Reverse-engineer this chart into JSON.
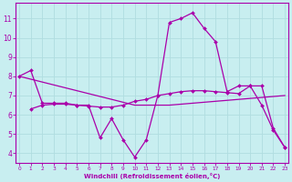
{
  "xlabel": "Windchill (Refroidissement éolien,°C)",
  "bg_color": "#c8eef0",
  "line_color": "#aa00aa",
  "grid_color": "#b0dde0",
  "x_ticks": [
    0,
    1,
    2,
    3,
    4,
    5,
    6,
    7,
    8,
    9,
    10,
    11,
    12,
    13,
    14,
    15,
    16,
    17,
    18,
    19,
    20,
    21,
    22,
    23
  ],
  "y_ticks": [
    4,
    5,
    6,
    7,
    8,
    9,
    10,
    11
  ],
  "ylim": [
    3.5,
    11.8
  ],
  "xlim": [
    -0.3,
    23.3
  ],
  "line1_x": [
    0,
    1,
    2,
    3,
    4,
    5,
    6,
    7,
    8,
    9,
    10,
    11,
    12,
    13,
    14,
    15,
    16,
    17,
    18,
    19,
    20,
    21,
    22,
    23
  ],
  "line1_y": [
    8.0,
    8.3,
    6.6,
    6.6,
    6.6,
    6.5,
    6.5,
    4.8,
    5.8,
    4.7,
    3.8,
    4.7,
    7.0,
    10.8,
    11.0,
    11.3,
    10.5,
    9.8,
    7.2,
    7.5,
    7.5,
    6.5,
    5.2,
    4.3
  ],
  "line2_x": [
    0,
    1,
    2,
    3,
    4,
    5,
    6,
    7,
    8,
    9,
    10,
    11,
    12,
    13,
    14,
    15,
    16,
    17,
    18,
    19,
    20,
    21,
    22,
    23
  ],
  "line2_y": [
    8.0,
    7.85,
    7.7,
    7.55,
    7.4,
    7.25,
    7.1,
    6.95,
    6.8,
    6.65,
    6.5,
    6.5,
    6.5,
    6.5,
    6.55,
    6.6,
    6.65,
    6.7,
    6.75,
    6.8,
    6.85,
    6.9,
    6.95,
    7.0
  ],
  "line3_x": [
    1,
    2,
    3,
    4,
    5,
    6,
    7,
    8,
    9,
    10,
    11,
    12,
    13,
    14,
    15,
    16,
    17,
    18,
    19,
    20,
    21,
    22,
    23
  ],
  "line3_y": [
    6.3,
    6.5,
    6.55,
    6.55,
    6.5,
    6.45,
    6.4,
    6.4,
    6.5,
    6.7,
    6.8,
    7.0,
    7.1,
    7.2,
    7.25,
    7.25,
    7.2,
    7.15,
    7.1,
    7.5,
    7.5,
    5.3,
    4.3
  ]
}
